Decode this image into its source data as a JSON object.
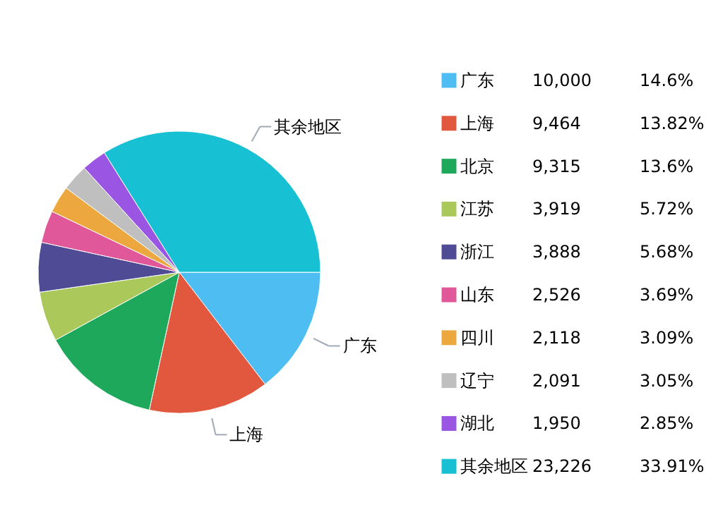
{
  "chart_data": {
    "type": "pie",
    "categories": [
      "广东",
      "上海",
      "北京",
      "江苏",
      "浙江",
      "山东",
      "四川",
      "辽宁",
      "湖北",
      "其余地区"
    ],
    "values": [
      10000,
      9464,
      9315,
      3919,
      3888,
      2526,
      2118,
      2091,
      1950,
      23226
    ],
    "colors": [
      "#4dbdf2",
      "#e2583e",
      "#1ea85c",
      "#aac95a",
      "#4f4b94",
      "#e1589a",
      "#eca83f",
      "#bfbfbf",
      "#9a55e3",
      "#17c0d2"
    ],
    "value_labels": [
      "10,000",
      "9,464",
      "9,315",
      "3,919",
      "3,888",
      "2,526",
      "2,118",
      "2,091",
      "1,950",
      "23,226"
    ],
    "legend": "right",
    "annotations": [
      {
        "text": "广东",
        "x": "广东"
      },
      {
        "text": "上海",
        "x": "上海"
      },
      {
        "text": "其余地区",
        "x": "其余地区"
      },
      "14.6%",
      "13.82%",
      "13.6%",
      "5.72%",
      "5.68%",
      "3.69%",
      "3.09%",
      "3.05%",
      "2.85%",
      "33.91%"
    ]
  }
}
